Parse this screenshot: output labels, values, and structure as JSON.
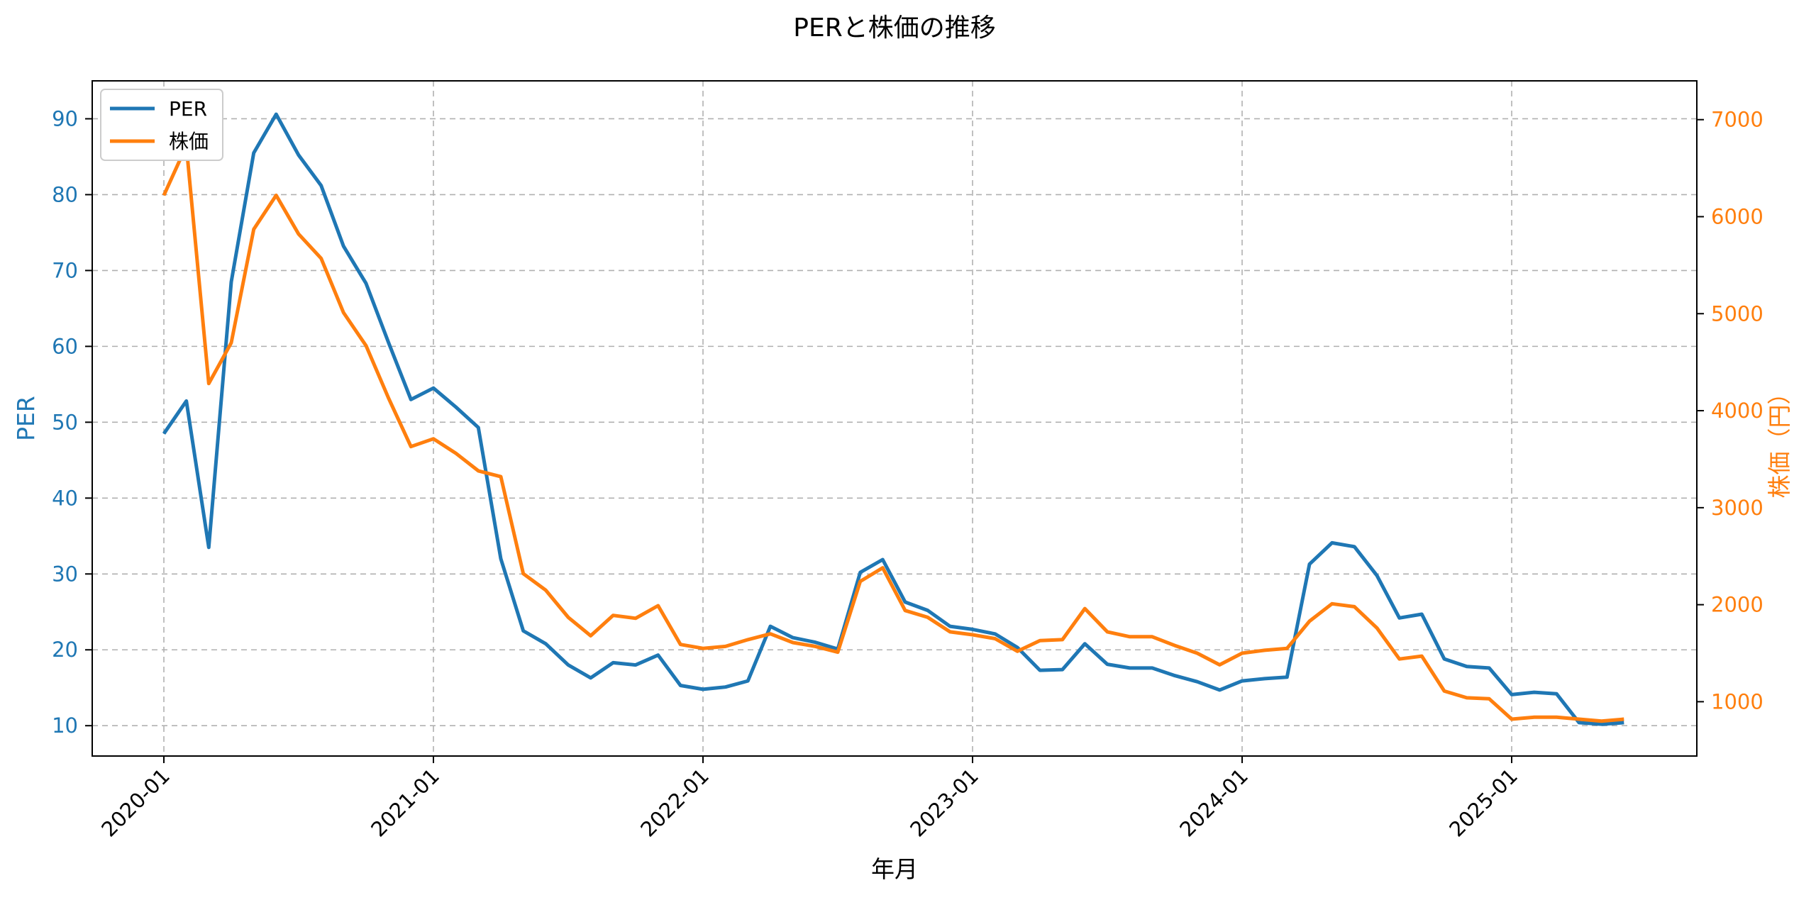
{
  "chart_data": {
    "type": "line",
    "title": "PERと株価の推移",
    "xlabel": "年月",
    "ylabel_left": "PER",
    "ylabel_right": "株価（円）",
    "ylim_left": [
      6,
      95
    ],
    "ylim_right": [
      440,
      7400
    ],
    "yticks_left": [
      10,
      20,
      30,
      40,
      50,
      60,
      70,
      80,
      90
    ],
    "yticks_right": [
      1000,
      2000,
      3000,
      4000,
      5000,
      6000,
      7000
    ],
    "xticks": [
      "2020-01",
      "2021-01",
      "2022-01",
      "2023-01",
      "2024-01",
      "2025-01"
    ],
    "grid": true,
    "legend_position": "top-left",
    "colors": {
      "per": "#1f77b4",
      "price": "#ff7f0e",
      "grid": "#b0b0b0",
      "axis": "#000000"
    },
    "series": [
      {
        "name": "PER",
        "axis": "left",
        "values": [
          48.5,
          52.8,
          33.5,
          68.5,
          85.5,
          90.6,
          85.2,
          81.2,
          73.2,
          68.3,
          60.5,
          53.0,
          54.5,
          52.0,
          49.3,
          32.0,
          22.5,
          20.8,
          18.0,
          16.3,
          18.3,
          18.0,
          19.3,
          15.3,
          14.8,
          15.1,
          15.9,
          23.1,
          21.6,
          21.0,
          20.1,
          30.2,
          31.9,
          26.3,
          25.2,
          23.1,
          22.7,
          22.1,
          20.3,
          17.3,
          17.4,
          20.8,
          18.1,
          17.6,
          17.6,
          16.6,
          15.8,
          14.7,
          15.9,
          16.2,
          16.4,
          31.3,
          34.1,
          33.6,
          29.8,
          24.2,
          24.7,
          18.8,
          17.8,
          17.6,
          14.1,
          14.4,
          14.2,
          10.4,
          10.2,
          10.4
        ]
      },
      {
        "name": "株価",
        "axis": "right",
        "values": [
          6220,
          6730,
          4280,
          4700,
          5870,
          6220,
          5820,
          5570,
          5010,
          4670,
          4130,
          3630,
          3710,
          3560,
          3380,
          3320,
          2320,
          2150,
          1870,
          1680,
          1890,
          1860,
          1990,
          1590,
          1550,
          1570,
          1640,
          1700,
          1610,
          1570,
          1510,
          2240,
          2380,
          1940,
          1870,
          1720,
          1690,
          1650,
          1520,
          1630,
          1640,
          1960,
          1720,
          1670,
          1670,
          1580,
          1500,
          1380,
          1500,
          1530,
          1550,
          1830,
          2010,
          1980,
          1760,
          1440,
          1470,
          1110,
          1040,
          1030,
          820,
          840,
          840,
          820,
          800,
          820
        ]
      }
    ]
  }
}
